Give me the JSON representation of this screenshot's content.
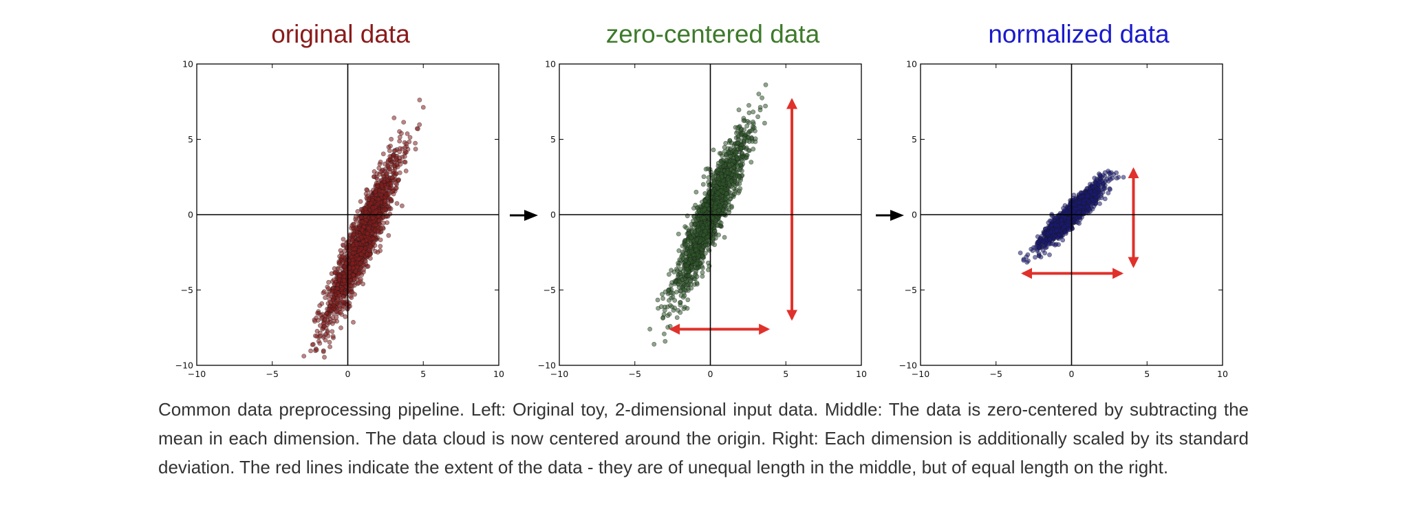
{
  "chart_data": [
    {
      "type": "scatter",
      "title": "original data",
      "title_color": "#8b1a1a",
      "point_color": "#8b1e1e",
      "xlim": [
        -10,
        10
      ],
      "ylim": [
        -10,
        10
      ],
      "xticks": [
        "−10",
        "−5",
        "0",
        "5",
        "10"
      ],
      "yticks": [
        "10",
        "5",
        "0",
        "−5",
        "−10"
      ],
      "axes_lines_at_origin": true,
      "distribution": {
        "mean": [
          1.0,
          -1.6
        ],
        "std_x": 1.25,
        "std_y": 2.8,
        "correlation": 0.92,
        "n": 1600
      },
      "extent_arrows": []
    },
    {
      "type": "scatter",
      "title": "zero-centered data",
      "title_color": "#3d7a2a",
      "point_color": "#2f5a2a",
      "xlim": [
        -10,
        10
      ],
      "ylim": [
        -10,
        10
      ],
      "xticks": [
        "−10",
        "−5",
        "0",
        "5",
        "10"
      ],
      "yticks": [
        "10",
        "5",
        "0",
        "−5",
        "−10"
      ],
      "axes_lines_at_origin": true,
      "distribution": {
        "mean": [
          0.0,
          0.0
        ],
        "std_x": 1.25,
        "std_y": 2.8,
        "correlation": 0.92,
        "n": 1600
      },
      "extent_arrows": [
        {
          "orientation": "horizontal",
          "from": [
            -2.6,
            -7.6
          ],
          "to": [
            3.8,
            -7.6
          ]
        },
        {
          "orientation": "vertical",
          "from": [
            5.4,
            7.6
          ],
          "to": [
            5.4,
            -6.9
          ]
        }
      ]
    },
    {
      "type": "scatter",
      "title": "normalized data",
      "title_color": "#1a1acc",
      "point_color": "#1a1a7a",
      "xlim": [
        -10,
        10
      ],
      "ylim": [
        -10,
        10
      ],
      "xticks": [
        "−10",
        "−5",
        "0",
        "5",
        "10"
      ],
      "yticks": [
        "10",
        "5",
        "0",
        "−5",
        "−10"
      ],
      "axes_lines_at_origin": true,
      "distribution": {
        "mean": [
          0.0,
          0.0
        ],
        "std_x": 1.0,
        "std_y": 1.0,
        "correlation": 0.92,
        "n": 1600
      },
      "extent_arrows": [
        {
          "orientation": "horizontal",
          "from": [
            -3.2,
            -3.9
          ],
          "to": [
            3.3,
            -3.9
          ]
        },
        {
          "orientation": "vertical",
          "from": [
            4.1,
            3.0
          ],
          "to": [
            4.1,
            -3.4
          ]
        }
      ]
    }
  ],
  "colors": {
    "extent_arrow": "#e0312b",
    "pipeline_arrow": "#000000",
    "axis": "#000000",
    "caption_text": "#333333"
  },
  "caption": "Common data preprocessing pipeline. Left: Original toy, 2-dimensional input data. Middle: The data is zero-centered by subtracting the mean in each dimension. The data cloud is now centered around the origin. Right: Each dimension is additionally scaled by its standard deviation. The red lines indicate the extent of the data - they are of unequal length in the middle, but of equal length on the right."
}
